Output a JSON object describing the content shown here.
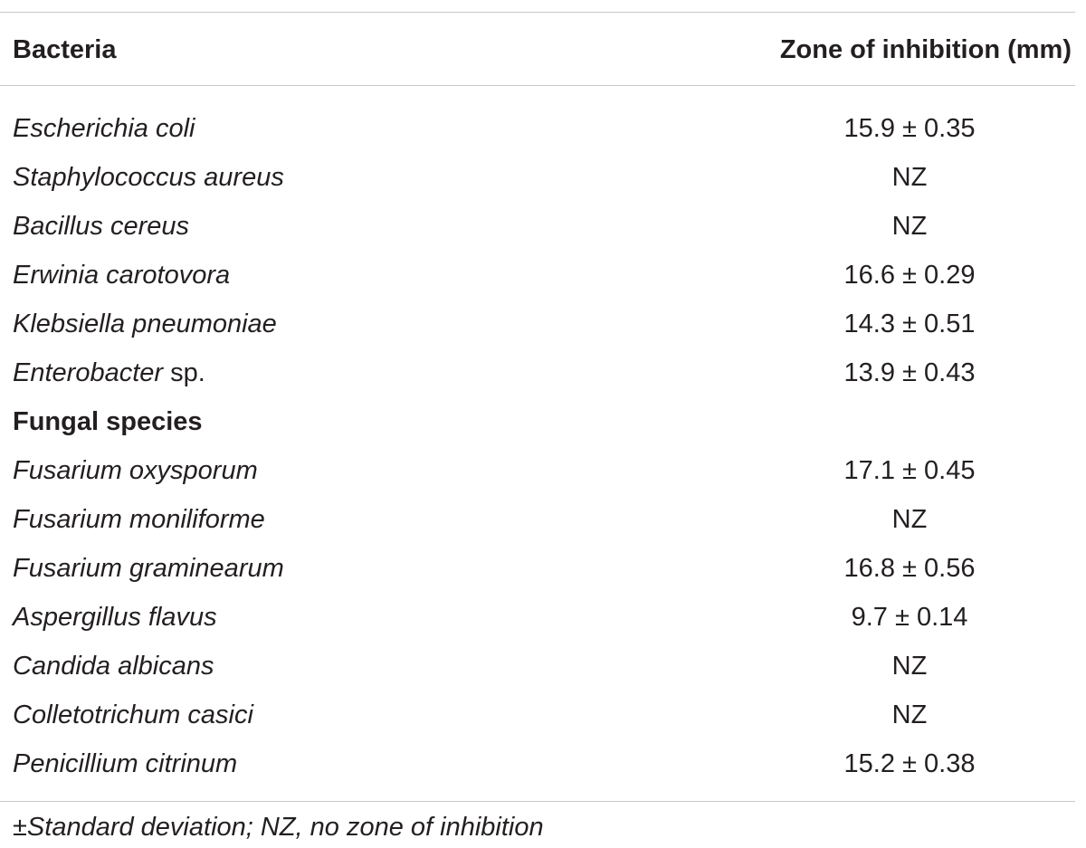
{
  "table": {
    "headers": {
      "organism": "Bacteria",
      "zone": "Zone of inhibition (mm)"
    },
    "rows": [
      {
        "type": "data",
        "name": "Escherichia coli",
        "suffix": "",
        "value": "15.9 ± 0.35"
      },
      {
        "type": "data",
        "name": "Staphylococcus aureus",
        "suffix": "",
        "value": "NZ"
      },
      {
        "type": "data",
        "name": "Bacillus cereus",
        "suffix": "",
        "value": "NZ"
      },
      {
        "type": "data",
        "name": "Erwinia carotovora",
        "suffix": "",
        "value": "16.6 ± 0.29"
      },
      {
        "type": "data",
        "name": "Klebsiella pneumoniae",
        "suffix": "",
        "value": "14.3 ± 0.51"
      },
      {
        "type": "data",
        "name": "Enterobacter",
        "suffix": " sp.",
        "value": "13.9 ± 0.43"
      },
      {
        "type": "section",
        "name": "Fungal species",
        "suffix": "",
        "value": ""
      },
      {
        "type": "data",
        "name": "Fusarium oxysporum",
        "suffix": "",
        "value": "17.1 ± 0.45"
      },
      {
        "type": "data",
        "name": "Fusarium moniliforme",
        "suffix": "",
        "value": "NZ"
      },
      {
        "type": "data",
        "name": "Fusarium graminearum",
        "suffix": "",
        "value": "16.8 ± 0.56"
      },
      {
        "type": "data",
        "name": "Aspergillus flavus",
        "suffix": "",
        "value": "9.7 ± 0.14"
      },
      {
        "type": "data",
        "name": "Candida albicans",
        "suffix": "",
        "value": "NZ"
      },
      {
        "type": "data",
        "name": "Colletotrichum casici",
        "suffix": "",
        "value": "NZ"
      },
      {
        "type": "data",
        "name": "Penicillium citrinum",
        "suffix": "",
        "value": "15.2 ± 0.38"
      }
    ],
    "footnote": {
      "symbol": "±",
      "text": "Standard deviation; NZ, no zone of inhibition"
    }
  }
}
